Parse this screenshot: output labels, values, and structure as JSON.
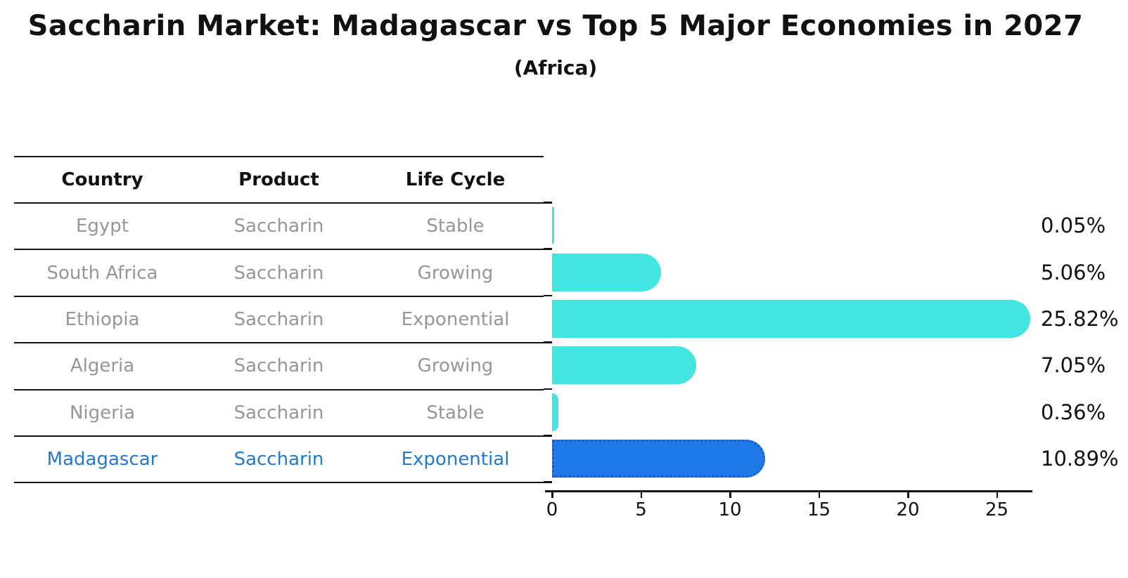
{
  "title": "Saccharin Market: Madagascar vs Top 5 Major Economies in 2027",
  "subtitle": "(Africa)",
  "colors": {
    "bar_cyan": "#42e5e0",
    "bar_highlight_blue": "#2079e8",
    "highlight_border_blue": "#1260cf",
    "highlight_text_blue": "#2579cb",
    "table_text_gray": "#969696",
    "text_black": "#111111"
  },
  "table": {
    "headers": [
      "Country",
      "Product",
      "Life Cycle"
    ],
    "rows": [
      {
        "country": "Egypt",
        "product": "Saccharin",
        "life_cycle": "Stable",
        "highlight": false
      },
      {
        "country": "South Africa",
        "product": "Saccharin",
        "life_cycle": "Growing",
        "highlight": false
      },
      {
        "country": "Ethiopia",
        "product": "Saccharin",
        "life_cycle": "Exponential",
        "highlight": false
      },
      {
        "country": "Algeria",
        "product": "Saccharin",
        "life_cycle": "Growing",
        "highlight": false
      },
      {
        "country": "Nigeria",
        "product": "Saccharin",
        "life_cycle": "Stable",
        "highlight": false
      },
      {
        "country": "Madagascar",
        "product": "Saccharin",
        "life_cycle": "Exponential",
        "highlight": true
      }
    ]
  },
  "chart_data": {
    "type": "bar",
    "orientation": "horizontal",
    "title": "Saccharin Market: Madagascar vs Top 5 Major Economies in 2027",
    "subtitle": "(Africa)",
    "categories": [
      "Egypt",
      "South Africa",
      "Ethiopia",
      "Algeria",
      "Nigeria",
      "Madagascar"
    ],
    "values": [
      0.05,
      5.06,
      25.82,
      7.05,
      0.36,
      10.89
    ],
    "value_labels": [
      "0.05%",
      "5.06%",
      "25.82%",
      "7.05%",
      "0.36%",
      "10.89%"
    ],
    "units": "percent",
    "xlim": [
      0,
      27
    ],
    "x_ticks": [
      0,
      5,
      10,
      15,
      20,
      25
    ],
    "grid": "off",
    "legend": "none",
    "highlight_category": "Madagascar",
    "bar_color": "#42e5e0",
    "highlight_color": "#2079e8"
  }
}
